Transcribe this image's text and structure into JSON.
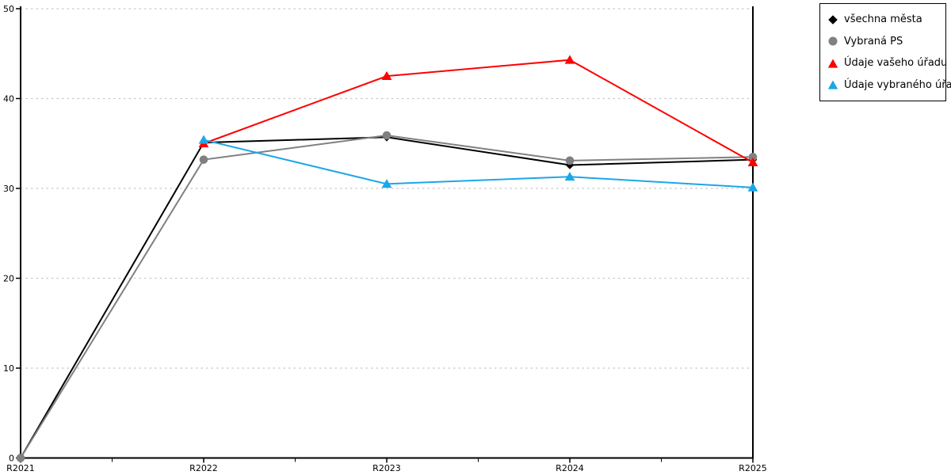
{
  "chart_data": {
    "type": "line",
    "categories": [
      "R2021",
      "R2022",
      "R2023",
      "R2024",
      "R2025"
    ],
    "y_ticks": [
      0,
      10,
      20,
      30,
      40,
      50
    ],
    "ylim": [
      0,
      50
    ],
    "grid": "horizontal-dotted",
    "legend_position": "top-right-outside",
    "colors": {
      "axis": "#000000",
      "gridline": "#c8c8c8",
      "background": "#ffffff"
    },
    "series": [
      {
        "name": "všechna města",
        "marker": "diamond",
        "color": "#000000",
        "values": [
          0,
          35.1,
          35.7,
          32.6,
          33.2
        ]
      },
      {
        "name": "Vybraná PS",
        "marker": "circle",
        "color": "#808080",
        "values": [
          0,
          33.2,
          35.9,
          33.1,
          33.5
        ]
      },
      {
        "name": "Údaje vašeho úřadu",
        "marker": "triangle",
        "color": "#ff0000",
        "values": [
          null,
          35.0,
          42.5,
          44.3,
          32.9
        ]
      },
      {
        "name": "Údaje vybraného úřadu",
        "marker": "triangle",
        "color": "#1ba7e8",
        "values": [
          null,
          35.4,
          30.5,
          31.3,
          30.1
        ]
      }
    ]
  }
}
